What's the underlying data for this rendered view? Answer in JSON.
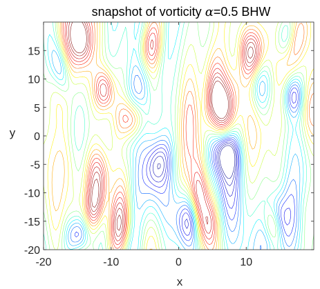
{
  "chart_data": {
    "type": "contour",
    "title": {
      "prefix": "snapshot of vorticity ",
      "greek": "α",
      "suffix": "=0.5  BHW"
    },
    "xlabel": "x",
    "ylabel": "y",
    "xlim": [
      -20,
      20
    ],
    "ylim": [
      -20,
      20
    ],
    "xticks": [
      -20,
      -10,
      0,
      10
    ],
    "yticks": [
      -20,
      -15,
      -10,
      -5,
      0,
      5,
      10,
      15
    ],
    "x_tick_labels": [
      "-20",
      "-10",
      "0",
      "10"
    ],
    "y_tick_labels": [
      "-20",
      "-15",
      "-10",
      "-5",
      "0",
      "5",
      "10",
      "15"
    ],
    "grid": false,
    "colormap": "jet",
    "colormap_stops": [
      "#00008f",
      "#0000ff",
      "#00ffff",
      "#ffff00",
      "#ff0000",
      "#800000"
    ],
    "structure": "vertically elongated vorticity streaks",
    "features": [
      {
        "kind": "positive-vortex",
        "x": -8.5,
        "y": -16.5
      },
      {
        "kind": "positive-vortex",
        "x": -12.0,
        "y": -7.0
      },
      {
        "kind": "positive-vortex",
        "x": -12.5,
        "y": -12.5
      },
      {
        "kind": "positive-vortex",
        "x": -11.0,
        "y": 8.0
      },
      {
        "kind": "positive-vortex",
        "x": -7.0,
        "y": 3.0
      },
      {
        "kind": "positive-vortex",
        "x": -4.5,
        "y": 15.5
      },
      {
        "kind": "positive-vortex",
        "x": -14.5,
        "y": 17.0
      },
      {
        "kind": "positive-vortex",
        "x": 3.0,
        "y": -10.5
      },
      {
        "kind": "positive-vortex",
        "x": 4.0,
        "y": -15.5
      },
      {
        "kind": "positive-vortex",
        "x": 6.0,
        "y": 5.0
      },
      {
        "kind": "positive-vortex",
        "x": 11.0,
        "y": 14.5
      },
      {
        "kind": "positive-vortex",
        "x": 14.0,
        "y": -16.0
      },
      {
        "kind": "positive-vortex",
        "x": 17.5,
        "y": 17.0
      },
      {
        "kind": "negative-vortex",
        "x": -15.0,
        "y": -17.5
      },
      {
        "kind": "negative-vortex",
        "x": -3.0,
        "y": -5.0
      },
      {
        "kind": "negative-vortex",
        "x": 1.5,
        "y": -14.5
      },
      {
        "kind": "negative-vortex",
        "x": 7.0,
        "y": -3.0
      },
      {
        "kind": "negative-vortex",
        "x": 12.0,
        "y": 9.0
      },
      {
        "kind": "negative-vortex",
        "x": 14.5,
        "y": -15.5
      },
      {
        "kind": "negative-vortex",
        "x": -17.5,
        "y": 12.0
      },
      {
        "kind": "negative-vortex",
        "x": 17.0,
        "y": 7.0
      },
      {
        "kind": "negative-vortex",
        "x": 16.0,
        "y": 17.5
      }
    ]
  }
}
